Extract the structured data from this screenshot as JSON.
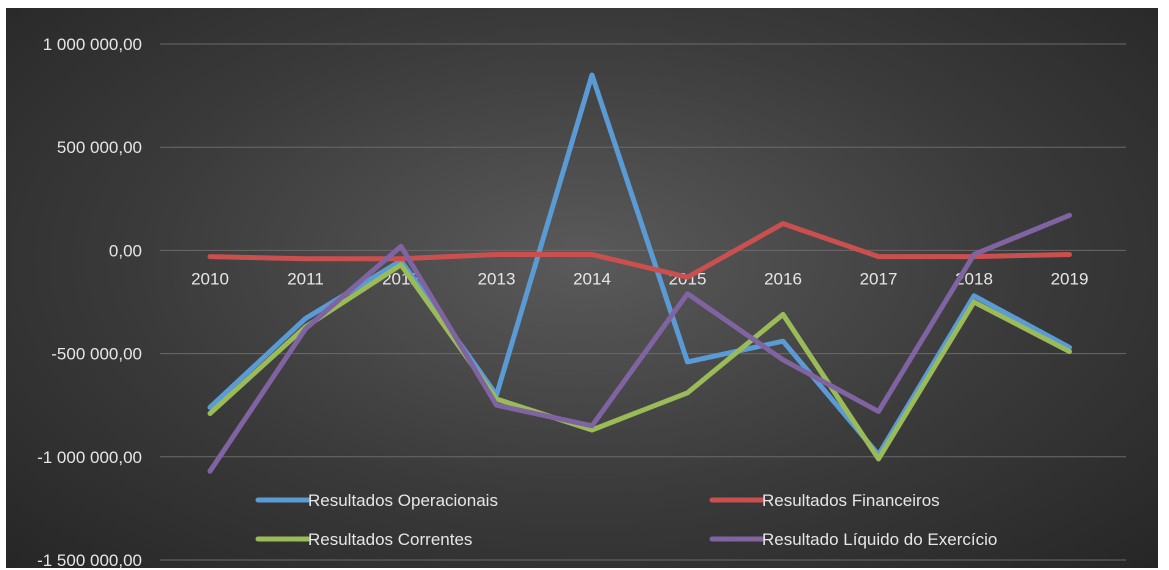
{
  "chart_data": {
    "type": "line",
    "title": "",
    "xlabel": "",
    "ylabel": "",
    "x": [
      "2010",
      "2011",
      "2012",
      "2013",
      "2014",
      "2015",
      "2016",
      "2017",
      "2018",
      "2019"
    ],
    "ylim": [
      -1500000,
      1000000
    ],
    "y_ticks": [
      1000000,
      500000,
      0,
      -500000,
      -1000000,
      -1500000
    ],
    "y_tick_labels": [
      "1 000 000,00",
      "500 000,00",
      "0,00",
      "-500 000,00",
      "-1 000 000,00",
      "-1 500 000,00"
    ],
    "grid": true,
    "legend_position": "bottom",
    "series": [
      {
        "name": "Resultados Operacionais",
        "color": "#5b9bd5",
        "values": [
          -760000,
          -330000,
          -50000,
          -700000,
          850000,
          -540000,
          -440000,
          -990000,
          -220000,
          -470000
        ]
      },
      {
        "name": "Resultados Financeiros",
        "color": "#c9504f",
        "values": [
          -30000,
          -40000,
          -40000,
          -20000,
          -20000,
          -130000,
          130000,
          -30000,
          -30000,
          -20000
        ]
      },
      {
        "name": "Resultados Correntes",
        "color": "#9bbb59",
        "values": [
          -790000,
          -370000,
          -70000,
          -720000,
          -870000,
          -690000,
          -310000,
          -1010000,
          -250000,
          -490000
        ]
      },
      {
        "name": "Resultado Líquido do Exercício",
        "color": "#8064a2",
        "values": [
          -1070000,
          -380000,
          20000,
          -750000,
          -850000,
          -210000,
          -530000,
          -780000,
          -20000,
          170000
        ]
      }
    ]
  }
}
